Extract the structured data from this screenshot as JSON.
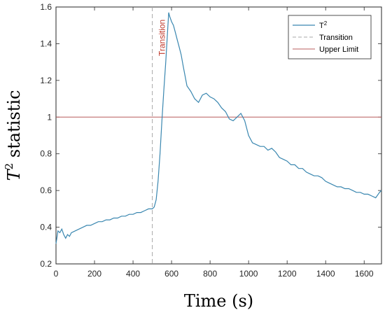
{
  "chart_data": {
    "type": "line",
    "xlabel": "Time (s)",
    "ylabel_base": "T",
    "ylabel_sup": "2",
    "ylabel_rest": " statistic",
    "xlim": [
      0,
      1690
    ],
    "ylim": [
      0.2,
      1.6
    ],
    "xticks": [
      0,
      200,
      400,
      600,
      800,
      1000,
      1200,
      1400,
      1600
    ],
    "yticks": [
      0.2,
      0.4,
      0.6,
      0.8,
      1,
      1.2,
      1.4,
      1.6
    ],
    "grid": false,
    "legend_position": "top-right",
    "legend": {
      "t2_base": "T",
      "t2_sup": "2",
      "transition": "Transition",
      "upper_limit": "Upper Limit"
    },
    "annotation": "Transition",
    "transition_x": 500,
    "upper_limit_y": 1.0,
    "series": [
      {
        "x": [
          0,
          10,
          20,
          30,
          40,
          50,
          60,
          70,
          80,
          100,
          120,
          140,
          160,
          180,
          200,
          220,
          240,
          260,
          280,
          300,
          320,
          340,
          360,
          380,
          400,
          420,
          440,
          460,
          480,
          500,
          510,
          520,
          530,
          540,
          550,
          560,
          570,
          580,
          585,
          590,
          600,
          610,
          620,
          630,
          640,
          650,
          660,
          680,
          700,
          720,
          740,
          760,
          780,
          800,
          820,
          840,
          860,
          880,
          900,
          920,
          940,
          960,
          980,
          1000,
          1020,
          1040,
          1060,
          1080,
          1100,
          1120,
          1140,
          1160,
          1180,
          1200,
          1220,
          1240,
          1260,
          1280,
          1300,
          1320,
          1340,
          1360,
          1380,
          1400,
          1420,
          1440,
          1460,
          1480,
          1500,
          1520,
          1540,
          1560,
          1580,
          1600,
          1620,
          1640,
          1660,
          1680,
          1690
        ],
        "y": [
          0.31,
          0.38,
          0.37,
          0.39,
          0.36,
          0.34,
          0.36,
          0.35,
          0.37,
          0.38,
          0.39,
          0.4,
          0.41,
          0.41,
          0.42,
          0.43,
          0.43,
          0.44,
          0.44,
          0.45,
          0.45,
          0.46,
          0.46,
          0.47,
          0.47,
          0.48,
          0.48,
          0.49,
          0.5,
          0.5,
          0.51,
          0.55,
          0.65,
          0.8,
          0.98,
          1.15,
          1.3,
          1.48,
          1.57,
          1.55,
          1.52,
          1.5,
          1.46,
          1.42,
          1.38,
          1.34,
          1.28,
          1.17,
          1.14,
          1.1,
          1.08,
          1.12,
          1.13,
          1.11,
          1.1,
          1.08,
          1.05,
          1.03,
          0.99,
          0.98,
          1.0,
          1.02,
          0.98,
          0.9,
          0.86,
          0.85,
          0.84,
          0.84,
          0.82,
          0.83,
          0.81,
          0.78,
          0.77,
          0.76,
          0.74,
          0.74,
          0.72,
          0.72,
          0.7,
          0.69,
          0.68,
          0.68,
          0.67,
          0.65,
          0.64,
          0.63,
          0.62,
          0.62,
          0.61,
          0.61,
          0.6,
          0.59,
          0.59,
          0.58,
          0.58,
          0.57,
          0.56,
          0.59,
          0.6
        ],
        "color": "#3a87b0"
      }
    ],
    "colors": {
      "transition": "#a9a9a9",
      "upper_limit": "#b85c5c",
      "annotation": "#c0392b"
    }
  }
}
